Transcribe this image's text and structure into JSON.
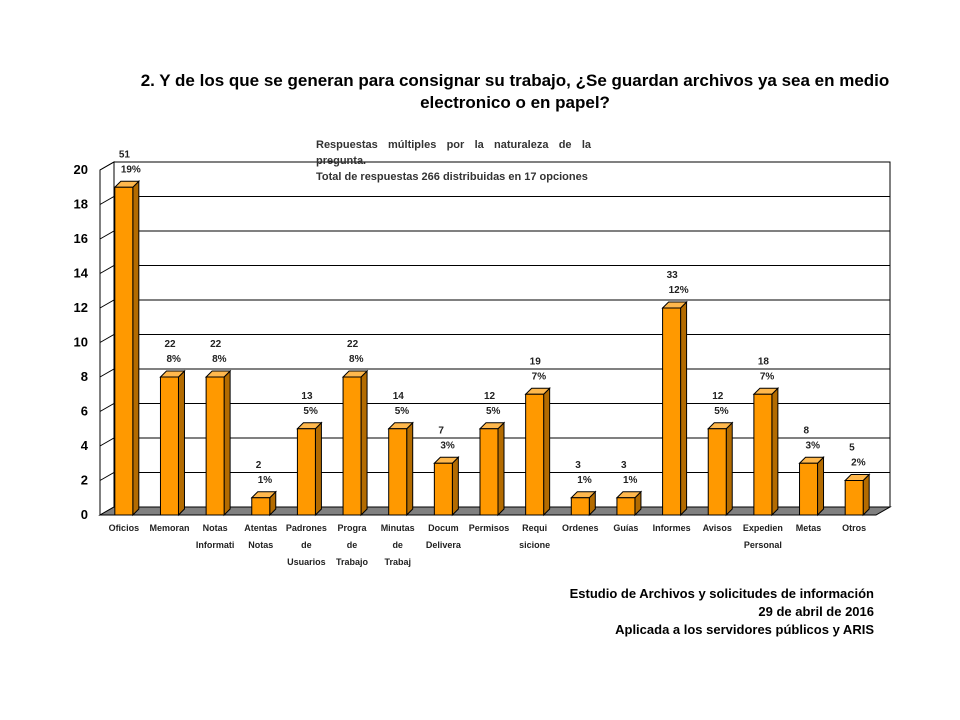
{
  "chart_data": {
    "type": "bar",
    "title": "2. Y de los que se generan para consignar su trabajo, ¿Se guardan archivos ya sea en medio electronico o en papel?",
    "note_lines": [
      "Respuestas  múltiples por la naturaleza de la pregunta.",
      "Total de respuestas 266 distribuidas en 17 opciones"
    ],
    "categories": [
      [
        "Oficios"
      ],
      [
        "Memoran"
      ],
      [
        "Notas",
        "Informati"
      ],
      [
        "Atentas",
        "Notas"
      ],
      [
        "Padrones",
        "de",
        "Usuarios"
      ],
      [
        "Progra",
        "de",
        "Trabajo"
      ],
      [
        "Minutas",
        "de",
        "Trabaj"
      ],
      [
        "Docum",
        "Delivera"
      ],
      [
        "Permisos"
      ],
      [
        "Requi",
        "sicione"
      ],
      [
        "Ordenes"
      ],
      [
        "Guías"
      ],
      [
        "Informes"
      ],
      [
        "Avisos"
      ],
      [
        "Expedien",
        "Personal"
      ],
      [
        "Metas"
      ],
      [
        "Otros"
      ]
    ],
    "values": [
      19,
      8,
      8,
      1,
      5,
      8,
      5,
      3,
      5,
      7,
      1,
      1,
      12,
      5,
      7,
      3,
      2
    ],
    "data_labels": [
      [
        "51",
        "19%"
      ],
      [
        "22",
        "8%"
      ],
      [
        "22",
        "8%"
      ],
      [
        "2",
        "1%"
      ],
      [
        "13",
        "5%"
      ],
      [
        "22",
        "8%"
      ],
      [
        "14",
        "5%"
      ],
      [
        "7",
        "3%"
      ],
      [
        "12",
        "5%"
      ],
      [
        "19",
        "7%"
      ],
      [
        "3",
        "1%"
      ],
      [
        "3",
        "1%"
      ],
      [
        "33",
        "12%"
      ],
      [
        "12",
        "5%"
      ],
      [
        "18",
        "7%"
      ],
      [
        "8",
        "3%"
      ],
      [
        "5",
        "2%"
      ]
    ],
    "yticks": [
      "0",
      "2",
      "4",
      "6",
      "8",
      "10",
      "12",
      "14",
      "16",
      "18",
      "20"
    ],
    "ylim": [
      0,
      20
    ],
    "grid": true,
    "bar_color": "#ff9900"
  },
  "footer": {
    "line1": "Estudio de Archivos y solicitudes de información",
    "line2": "29 de abril de 2016",
    "line3": "Aplicada a los servidores públicos y ARIS"
  }
}
